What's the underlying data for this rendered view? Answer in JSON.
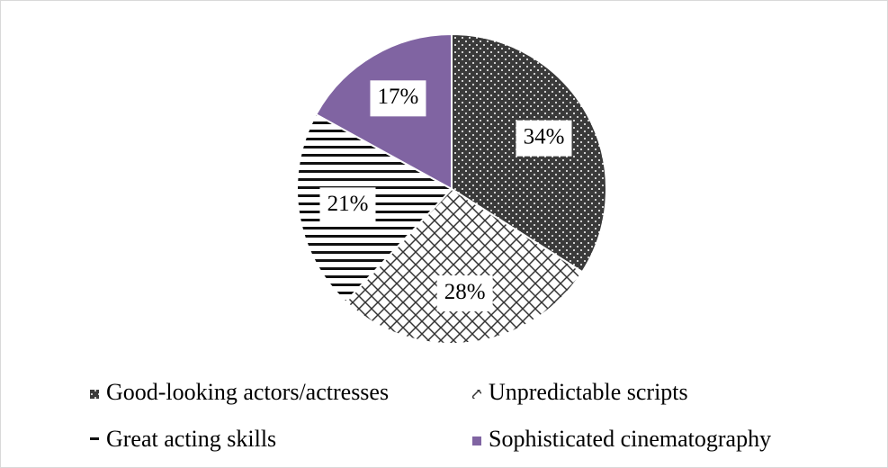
{
  "chart_data": {
    "type": "pie",
    "categories": [
      "Good-looking actors/actresses",
      "Unpredictable scripts",
      "Great acting skills",
      "Sophisticated cinematography"
    ],
    "values": [
      34,
      28,
      21,
      17
    ],
    "value_labels": [
      "34%",
      "28%",
      "21%",
      "17%"
    ],
    "colors": [
      "#3a3a3a",
      "#333333",
      "#111111",
      "#8064a2"
    ],
    "patterns": [
      "dots",
      "crosshatch",
      "horizontal",
      "solid"
    ]
  }
}
